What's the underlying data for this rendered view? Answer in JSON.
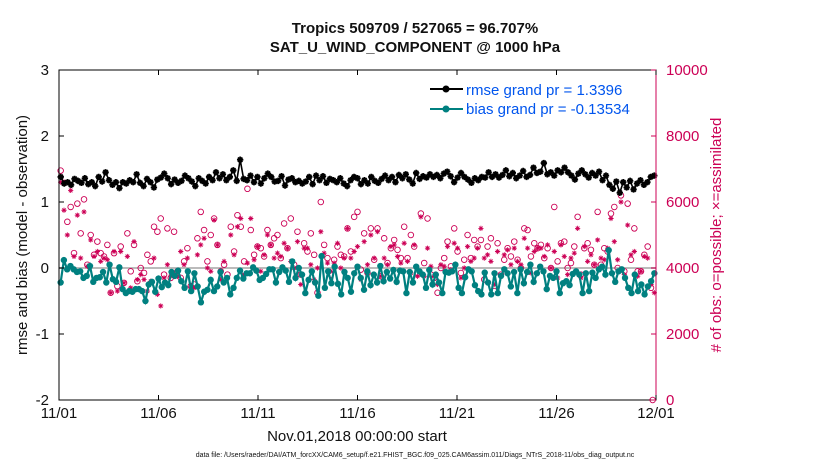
{
  "title_line1": "Tropics 509709 / 527065 = 96.707%",
  "title_line2": "SAT_U_WIND_COMPONENT @ 1000 hPa",
  "footer_text": "data file: /Users/raeder/DAI/ATM_forcXX/CAM6_setup/f.e21.FHIST_BGC.f09_025.CAM6assim.011/Diags_NTrS_2018-11/obs_diag_output.nc",
  "chart_data": {
    "type": "line",
    "xlabel": "Nov.01,2018 00:00:00 start",
    "ylabel_left": "rmse and bias (model - observation)",
    "ylabel_right": "# of obs: o=possible; ×=assimilated",
    "xlim": [
      0,
      30
    ],
    "ylim_left": [
      -2,
      3
    ],
    "ylim_right": [
      0,
      10000
    ],
    "x_ticks": [
      0,
      5,
      10,
      15,
      20,
      25,
      30
    ],
    "x_tick_labels": [
      "11/01",
      "11/06",
      "11/11",
      "11/16",
      "11/21",
      "11/26",
      "12/01"
    ],
    "y_ticks_left": [
      -2,
      -1,
      0,
      1,
      2,
      3
    ],
    "y_tick_labels_left": [
      "-2",
      "-1",
      "0",
      "1",
      "2",
      "3"
    ],
    "y_ticks_right": [
      0,
      2000,
      4000,
      6000,
      8000,
      10000
    ],
    "y_tick_labels_right": [
      "0",
      "2000",
      "4000",
      "6000",
      "8000",
      "10000"
    ],
    "colors": {
      "rmse": "#000000",
      "bias": "#008080",
      "counts": "#cc0055",
      "zero_line": "#bbbbbb",
      "legend_text": "#0055ee"
    },
    "legend": {
      "position": "top-right",
      "entries": [
        "rmse grand pr = 1.3396",
        "bias grand pr = -0.13534"
      ]
    },
    "series": [
      {
        "name": "rmse",
        "marker": "star",
        "values": [
          1.38,
          1.28,
          1.3,
          1.26,
          1.35,
          1.32,
          1.29,
          1.36,
          1.27,
          1.3,
          1.24,
          1.38,
          1.31,
          1.45,
          1.33,
          1.26,
          1.3,
          1.21,
          1.3,
          1.28,
          1.33,
          1.3,
          1.42,
          1.29,
          1.24,
          1.35,
          1.3,
          1.22,
          1.34,
          1.37,
          1.43,
          1.36,
          1.27,
          1.34,
          1.29,
          1.32,
          1.4,
          1.36,
          1.31,
          1.24,
          1.36,
          1.32,
          1.28,
          1.38,
          1.33,
          1.45,
          1.36,
          1.42,
          1.33,
          1.38,
          1.48,
          1.32,
          1.64,
          1.35,
          1.33,
          1.4,
          1.3,
          1.38,
          1.28,
          1.36,
          1.43,
          1.38,
          1.31,
          1.32,
          1.39,
          1.25,
          1.34,
          1.36,
          1.3,
          1.32,
          1.28,
          1.31,
          1.38,
          1.27,
          1.4,
          1.33,
          1.39,
          1.29,
          1.35,
          1.33,
          1.3,
          1.36,
          1.28,
          1.24,
          1.33,
          1.38,
          1.36,
          1.27,
          1.33,
          1.28,
          1.38,
          1.32,
          1.29,
          1.35,
          1.4,
          1.33,
          1.38,
          1.3,
          1.41,
          1.36,
          1.42,
          1.34,
          1.28,
          1.44,
          1.35,
          1.39,
          1.37,
          1.42,
          1.38,
          1.41,
          1.36,
          1.43,
          1.46,
          1.39,
          1.3,
          1.37,
          1.44,
          1.38,
          1.34,
          1.29,
          1.36,
          1.33,
          1.38,
          1.37,
          1.45,
          1.38,
          1.42,
          1.37,
          1.41,
          1.48,
          1.39,
          1.44,
          1.36,
          1.4,
          1.47,
          1.38,
          1.41,
          1.52,
          1.44,
          1.46,
          1.59,
          1.42,
          1.45,
          1.4,
          1.48,
          1.45,
          1.52,
          1.45,
          1.4,
          1.34,
          1.43,
          1.48,
          1.42,
          1.37,
          1.44,
          1.4,
          1.46,
          1.33,
          1.4,
          1.26,
          1.2,
          1.31,
          1.14,
          1.3,
          1.22,
          1.32,
          1.19,
          1.28,
          1.33,
          1.26,
          1.3,
          1.38,
          1.4
        ]
      },
      {
        "name": "bias",
        "marker": "circle",
        "values": [
          -0.22,
          0.12,
          -0.02,
          0.03,
          -0.02,
          -0.06,
          -0.05,
          -0.15,
          -0.12,
          0.03,
          -0.21,
          -0.15,
          -0.14,
          -0.06,
          -0.22,
          0.05,
          -0.17,
          -0.21,
          0.01,
          -0.32,
          -0.38,
          -0.35,
          -0.36,
          -0.32,
          -0.32,
          -0.35,
          -0.5,
          -0.25,
          -0.21,
          -0.36,
          -0.16,
          -0.29,
          -0.22,
          -0.26,
          -0.06,
          -0.12,
          -0.04,
          -0.2,
          -0.3,
          -0.05,
          -0.35,
          -0.08,
          -0.28,
          -0.52,
          -0.36,
          -0.33,
          -0.18,
          -0.35,
          -0.28,
          -0.06,
          -0.22,
          -0.15,
          -0.4,
          -0.3,
          -0.15,
          -0.04,
          -0.16,
          -0.08,
          -0.08,
          0.01,
          -0.04,
          -0.18,
          -0.15,
          -0.09,
          -0.02,
          -0.02,
          -0.22,
          -0.06,
          0.01,
          -0.04,
          -0.21,
          0.1,
          -0.15,
          0.0,
          -0.1,
          -0.38,
          -0.18,
          -0.05,
          -0.22,
          -0.42,
          0.18,
          -0.3,
          -0.05,
          -0.23,
          0.02,
          -0.24,
          -0.4,
          -0.06,
          -0.15,
          -0.36,
          -0.08,
          0.02,
          -0.15,
          -0.33,
          -0.05,
          -0.26,
          -0.1,
          -0.22,
          0.03,
          -0.2,
          -0.06,
          -0.16,
          -0.03,
          -0.21,
          -0.04,
          -0.05,
          -0.38,
          -0.06,
          -0.22,
          0.02,
          -0.05,
          -0.1,
          -0.3,
          -0.03,
          -0.25,
          -0.1,
          -0.22,
          -0.38,
          -0.06,
          -0.07,
          -0.05,
          0.05,
          -0.3,
          -0.38,
          -0.14,
          -0.02,
          -0.05,
          -0.26,
          -0.35,
          -0.4,
          -0.07,
          -0.22,
          -0.4,
          -0.08,
          -0.38,
          -0.12,
          -0.02,
          -0.08,
          -0.28,
          -0.06,
          -0.38,
          -0.02,
          -0.23,
          -0.06,
          0.05,
          -0.21,
          -0.08,
          0.02,
          -0.05,
          -0.32,
          -0.12,
          -0.15,
          -0.05,
          -0.38,
          -0.23,
          -0.2,
          -0.26,
          -0.09,
          -0.05,
          -0.1,
          -0.38,
          -0.08,
          -0.35,
          -0.07,
          -0.15,
          -0.02,
          0.02,
          -0.1,
          0.27,
          -0.08,
          -0.21,
          -0.05,
          -0.02,
          -0.15,
          -0.3,
          -0.38,
          -0.1,
          -0.35,
          -0.25,
          -0.4,
          -0.28,
          -0.2,
          -0.08
        ]
      },
      {
        "name": "obs_possible",
        "marker": "o",
        "axis": "right",
        "values": [
          6950,
          6580,
          5400,
          5850,
          4450,
          5950,
          5050,
          6080,
          4100,
          5000,
          4400,
          4800,
          4450,
          4350,
          4700,
          3250,
          4450,
          3450,
          4650,
          3550,
          5050,
          3900,
          4700,
          3600,
          4000,
          3850,
          4400,
          4200,
          5250,
          5100,
          5500,
          3800,
          5200,
          3700,
          5100,
          3900,
          3700,
          4200,
          4600,
          3450,
          3500,
          4900,
          5700,
          5150,
          4200,
          5000,
          5500,
          4700,
          3900,
          4100,
          3800,
          5250,
          4500,
          5600,
          5250,
          4200,
          6400,
          5150,
          4400,
          4650,
          4600,
          4350,
          5150,
          4700,
          4900,
          5000,
          4300,
          5350,
          4600,
          5500,
          4100,
          5100,
          3800,
          4750,
          4500,
          5050,
          4400,
          3250,
          6000,
          4700,
          4300,
          3800,
          4250,
          4650,
          4400,
          4350,
          5200,
          4500,
          5550,
          5700,
          3950,
          5050,
          3850,
          5200,
          4250,
          5200,
          3750,
          4900,
          4150,
          4600,
          4850,
          4550,
          4300,
          5250,
          4300,
          5000,
          4650,
          3850,
          5650,
          4150,
          5500,
          3800,
          3700,
          3250,
          4000,
          4300,
          4800,
          4050,
          5200,
          4500,
          3850,
          4250,
          5000,
          4300,
          4850,
          4650,
          4850,
          3650,
          4650,
          4900,
          3300,
          4750,
          3800,
          4250,
          4600,
          4350,
          4800,
          4250,
          4000,
          5200,
          5150,
          4350,
          4750,
          4600,
          4700,
          4300,
          4600,
          4000,
          5850,
          4200,
          4750,
          4800,
          4000,
          4150,
          4650,
          5550,
          3800,
          4600,
          4750,
          4550,
          4100,
          5700,
          4100,
          4600,
          4500,
          5650,
          5850,
          4000,
          6200,
          3900,
          5950,
          4250,
          5200,
          3900,
          3900,
          4400,
          4650,
          3400,
          0
        ]
      },
      {
        "name": "obs_assimilated",
        "marker": "x",
        "axis": "right",
        "values": [
          6600,
          5750,
          5000,
          6350,
          4350,
          5600,
          4300,
          5700,
          4050,
          4850,
          4350,
          4500,
          4200,
          4300,
          4250,
          3250,
          4500,
          3300,
          4500,
          3550,
          4350,
          3400,
          4800,
          3650,
          3800,
          3650,
          3300,
          3600,
          4300,
          3200,
          2850,
          3700,
          4100,
          3750,
          3800,
          3750,
          4500,
          4100,
          4300,
          3450,
          3400,
          4400,
          4700,
          4900,
          4000,
          3900,
          5450,
          4700,
          3650,
          4200,
          3700,
          5000,
          4400,
          5250,
          5500,
          3800,
          4150,
          5500,
          4250,
          4650,
          3900,
          4400,
          5000,
          4700,
          4300,
          4450,
          4350,
          4750,
          4600,
          4200,
          4000,
          4800,
          3500,
          4600,
          4600,
          4100,
          3650,
          4000,
          5100,
          4450,
          4150,
          3900,
          4150,
          4750,
          4000,
          4300,
          5200,
          4300,
          4500,
          4650,
          3650,
          4800,
          4100,
          5000,
          4300,
          5100,
          3750,
          4300,
          4100,
          4650,
          4700,
          4350,
          4150,
          4750,
          4200,
          3850,
          4700,
          3750,
          5550,
          3750,
          4600,
          4050,
          3750,
          3500,
          4100,
          4050,
          4650,
          3950,
          4750,
          4600,
          3700,
          4000,
          4650,
          4200,
          4300,
          4600,
          5200,
          4300,
          4400,
          4200,
          3500,
          4500,
          3750,
          4400,
          4550,
          4100,
          4600,
          4200,
          4100,
          4900,
          4600,
          3850,
          4500,
          4600,
          4600,
          4350,
          4700,
          4000,
          4500,
          3700,
          4700,
          4350,
          3800,
          4300,
          4450,
          5200,
          3700,
          4650,
          4200,
          4400,
          4100,
          4850,
          4300,
          4250,
          4600,
          5500,
          4800,
          4250,
          6000,
          3800,
          5300,
          4400,
          4500,
          3750,
          3900,
          4350,
          4300,
          3500,
          3250
        ]
      }
    ]
  }
}
